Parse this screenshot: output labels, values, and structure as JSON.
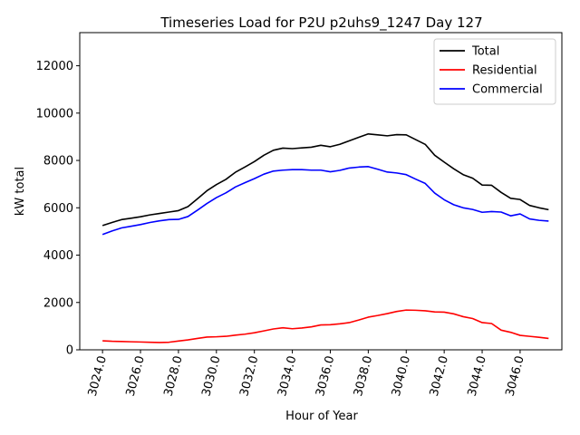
{
  "chart_data": {
    "type": "line",
    "title": "Timeseries Load for P2U p2uhs9_1247  Day 127",
    "xlabel": "Hour of Year",
    "ylabel": "kW total",
    "xlim": [
      3022.8,
      3048.2
    ],
    "ylim": [
      0,
      13400
    ],
    "xticks": [
      3024,
      3026,
      3028,
      3030,
      3032,
      3034,
      3036,
      3038,
      3040,
      3042,
      3044,
      3046
    ],
    "xtick_labels": [
      "3024.0",
      "3026.0",
      "3028.0",
      "3030.0",
      "3032.0",
      "3034.0",
      "3036.0",
      "3038.0",
      "3040.0",
      "3042.0",
      "3044.0",
      "3046.0"
    ],
    "yticks": [
      0,
      2000,
      4000,
      6000,
      8000,
      10000,
      12000
    ],
    "ytick_labels": [
      "0",
      "2000",
      "4000",
      "6000",
      "8000",
      "10000",
      "12000"
    ],
    "legend_position": "top-right",
    "x": [
      3024.0,
      3024.5,
      3025.0,
      3025.5,
      3026.0,
      3026.5,
      3027.0,
      3027.5,
      3028.0,
      3028.5,
      3029.0,
      3029.5,
      3030.0,
      3030.5,
      3031.0,
      3031.5,
      3032.0,
      3032.5,
      3033.0,
      3033.5,
      3034.0,
      3034.5,
      3035.0,
      3035.5,
      3036.0,
      3036.5,
      3037.0,
      3037.5,
      3038.0,
      3038.5,
      3039.0,
      3039.5,
      3040.0,
      3040.5,
      3041.0,
      3041.5,
      3042.0,
      3042.5,
      3043.0,
      3043.5,
      3044.0,
      3044.5,
      3045.0,
      3045.5,
      3046.0,
      3046.5,
      3047.0,
      3047.5
    ],
    "series": [
      {
        "name": "Total",
        "color": "#000000",
        "values": [
          5250,
          5380,
          5500,
          5560,
          5620,
          5700,
          5760,
          5820,
          5880,
          6050,
          6380,
          6720,
          6980,
          7200,
          7500,
          7720,
          7950,
          8220,
          8430,
          8520,
          8500,
          8530,
          8560,
          8640,
          8580,
          8680,
          8830,
          8980,
          9120,
          9080,
          9040,
          9090,
          9080,
          8880,
          8680,
          8220,
          7930,
          7650,
          7400,
          7250,
          6960,
          6950,
          6650,
          6400,
          6350,
          6100,
          6000,
          5920
        ]
      },
      {
        "name": "Residential",
        "color": "#ff0000",
        "values": [
          380,
          360,
          350,
          340,
          330,
          320,
          310,
          320,
          370,
          420,
          480,
          540,
          550,
          570,
          620,
          660,
          720,
          800,
          880,
          930,
          890,
          920,
          970,
          1050,
          1060,
          1100,
          1150,
          1260,
          1380,
          1450,
          1530,
          1620,
          1680,
          1670,
          1650,
          1600,
          1590,
          1520,
          1400,
          1320,
          1150,
          1110,
          830,
          740,
          610,
          570,
          530,
          480
        ]
      },
      {
        "name": "Commercial",
        "color": "#0000ff",
        "values": [
          4870,
          5020,
          5150,
          5220,
          5290,
          5380,
          5450,
          5500,
          5510,
          5630,
          5900,
          6180,
          6430,
          6630,
          6880,
          7060,
          7230,
          7420,
          7550,
          7590,
          7610,
          7610,
          7590,
          7590,
          7520,
          7580,
          7680,
          7720,
          7740,
          7630,
          7510,
          7470,
          7400,
          7210,
          7030,
          6620,
          6340,
          6130,
          6000,
          5930,
          5810,
          5840,
          5820,
          5660,
          5740,
          5530,
          5470,
          5440
        ]
      }
    ]
  }
}
